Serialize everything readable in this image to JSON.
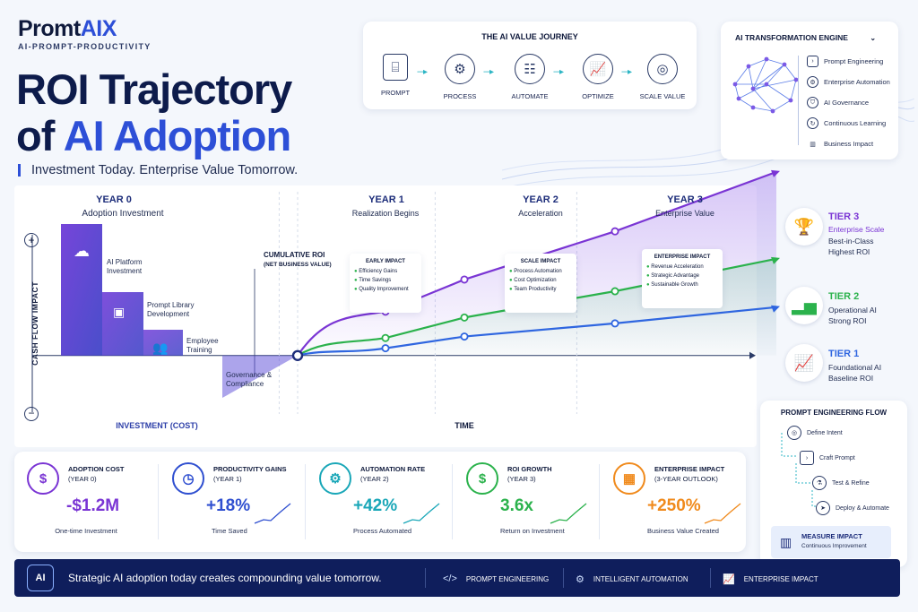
{
  "brand": {
    "name_main": "Promt",
    "name_accent": "AIX",
    "tagline": "AI-PROMPT-PRODUCTIVITY"
  },
  "title": {
    "line1": "ROI Trajectory",
    "line2_prefix": "of ",
    "line2_accent": "AI Adoption",
    "subtitle": "Investment Today. Enterprise Value Tomorrow."
  },
  "journey": {
    "title": "THE AI VALUE JOURNEY",
    "steps": [
      {
        "label": "PROMPT",
        "icon": "prompt-icon"
      },
      {
        "label": "PROCESS",
        "icon": "gear-icon"
      },
      {
        "label": "AUTOMATE",
        "icon": "robot-icon"
      },
      {
        "label": "OPTIMIZE",
        "icon": "chart-icon"
      },
      {
        "label": "SCALE VALUE",
        "icon": "target-icon"
      }
    ]
  },
  "engine": {
    "title": "AI TRANSFORMATION ENGINE",
    "items": [
      "Prompt Engineering",
      "Enterprise Automation",
      "AI Governance",
      "Continuous Learning",
      "Business Impact"
    ]
  },
  "chart_data": {
    "type": "line",
    "xlabel": "TIME",
    "ylabel": "CASH FLOW IMPACT",
    "investment_label": "INVESTMENT (COST)",
    "cumulative_label_1": "CUMULATIVE ROI",
    "cumulative_label_2": "(NET BUSINESS VALUE)",
    "plus_sign": "+",
    "minus_sign": "−",
    "x": [
      0,
      1,
      2,
      3
    ],
    "series": [
      {
        "name": "Tier 3",
        "values": [
          0,
          3.0,
          5.2,
          8.5
        ],
        "color": "#7a35d4"
      },
      {
        "name": "Tier 2",
        "values": [
          0,
          1.2,
          2.6,
          4.4
        ],
        "color": "#2bb24c"
      },
      {
        "name": "Tier 1",
        "values": [
          0,
          0.5,
          1.3,
          2.2
        ],
        "color": "#2f66e0"
      }
    ],
    "ylim": [
      -4,
      9
    ],
    "xlim": [
      -1.3,
      3.7
    ],
    "years": [
      {
        "label": "YEAR 0",
        "sub": "Adoption Investment"
      },
      {
        "label": "YEAR 1",
        "sub": "Realization Begins"
      },
      {
        "label": "YEAR 2",
        "sub": "Acceleration"
      },
      {
        "label": "YEAR 3",
        "sub": "Enterprise Value"
      }
    ],
    "investment_steps": [
      {
        "label_1": "AI Platform",
        "label_2": "Investment",
        "icon": "cloud-server-icon"
      },
      {
        "label_1": "Prompt Library",
        "label_2": "Development",
        "icon": "terminal-icon"
      },
      {
        "label_1": "Employee",
        "label_2": "Training",
        "icon": "users-icon"
      },
      {
        "label_1": "Governance &",
        "label_2": "Compliance",
        "icon": "shield-icon"
      }
    ],
    "impact_boxes": [
      {
        "title": "EARLY IMPACT",
        "items": [
          "Efficiency Gains",
          "Time Savings",
          "Quality Improvement"
        ]
      },
      {
        "title": "SCALE IMPACT",
        "items": [
          "Process Automation",
          "Cost Optimization",
          "Team Productivity"
        ]
      },
      {
        "title": "ENTERPRISE IMPACT",
        "items": [
          "Revenue Acceleration",
          "Strategic Advantage",
          "Sustainable Growth"
        ]
      }
    ]
  },
  "tiers": [
    {
      "name": "TIER 3",
      "line1": "Enterprise Scale",
      "line2": "Best-in-Class",
      "line3": "Highest ROI",
      "color": "#7a35d4",
      "icon": "trophy-icon"
    },
    {
      "name": "TIER 2",
      "line1": "Operational AI",
      "line2": "Strong ROI",
      "color": "#2bb24c",
      "icon": "growth-chart-icon"
    },
    {
      "name": "TIER 1",
      "line1": "Foundational AI",
      "line2": "Baseline ROI",
      "color": "#2f66e0",
      "icon": "line-chart-icon"
    }
  ],
  "flow": {
    "title": "PROMPT ENGINEERING FLOW",
    "steps": [
      "Define Intent",
      "Craft Prompt",
      "Test & Refine",
      "Deploy & Automate"
    ],
    "final_title": "MEASURE IMPACT",
    "final_sub": "Continuous Improvement"
  },
  "metrics": [
    {
      "title": "ADOPTION COST",
      "period": "(YEAR 0)",
      "value": "-$1.2M",
      "note": "One-time Investment",
      "color": "#7a35d4",
      "icon": "dollar-icon"
    },
    {
      "title": "PRODUCTIVITY GAINS",
      "period": "(YEAR 1)",
      "value": "+18%",
      "note": "Time Saved",
      "color": "#2f4fd0",
      "icon": "clock-icon"
    },
    {
      "title": "AUTOMATION RATE",
      "period": "(YEAR 2)",
      "value": "+42%",
      "note": "Process Automated",
      "color": "#1aa7b8",
      "icon": "gear-icon"
    },
    {
      "title": "ROI GROWTH",
      "period": "(YEAR 3)",
      "value": "3.6x",
      "note": "Return on Investment",
      "color": "#2bb24c",
      "icon": "dollar-icon"
    },
    {
      "title": "ENTERPRISE IMPACT",
      "period": "(3-YEAR OUTLOOK)",
      "value": "+250%",
      "note": "Business Value Created",
      "color": "#f08a1c",
      "icon": "building-icon"
    }
  ],
  "footer": {
    "badge": "AI",
    "message": "Strategic AI adoption today creates compounding value tomorrow.",
    "tags": [
      {
        "label": "PROMPT ENGINEERING",
        "icon": "code-icon"
      },
      {
        "label": "INTELLIGENT AUTOMATION",
        "icon": "gear-icon"
      },
      {
        "label": "ENTERPRISE IMPACT",
        "icon": "growth-chart-icon"
      }
    ]
  }
}
